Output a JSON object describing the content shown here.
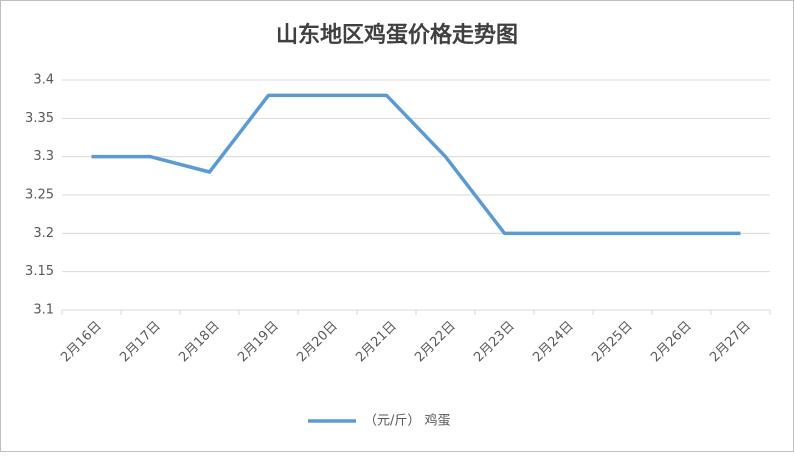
{
  "chart_data": {
    "type": "line",
    "title": "山东地区鸡蛋价格走势图",
    "categories": [
      "2月16日",
      "2月17日",
      "2月18日",
      "2月19日",
      "2月20日",
      "2月21日",
      "2月22日",
      "2月23日",
      "2月24日",
      "2月25日",
      "2月26日",
      "2月27日"
    ],
    "series": [
      {
        "name": "（元/斤） 鸡蛋",
        "color": "#5b9bd5",
        "values": [
          3.3,
          3.3,
          3.28,
          3.38,
          3.38,
          3.38,
          3.3,
          3.2,
          3.2,
          3.2,
          3.2,
          3.2
        ]
      }
    ],
    "ylim": [
      3.1,
      3.4
    ],
    "yticks": [
      3.1,
      3.15,
      3.2,
      3.25,
      3.3,
      3.35,
      3.4
    ],
    "grid": true,
    "legend": "bottom"
  }
}
